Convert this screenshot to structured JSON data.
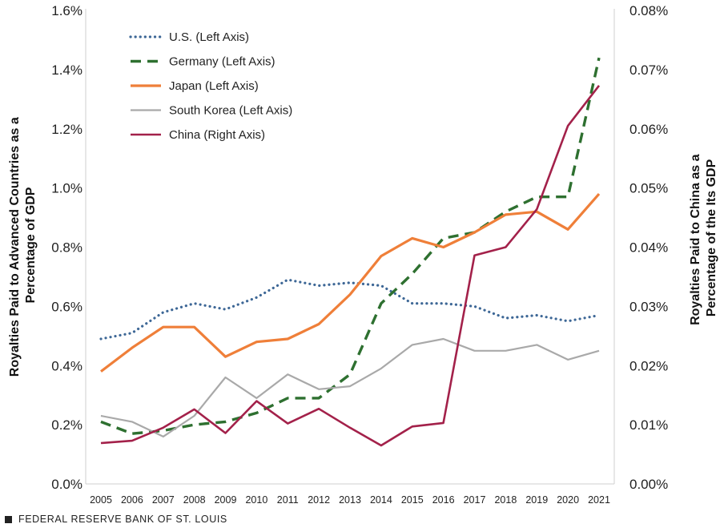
{
  "chart_data": {
    "type": "line",
    "title": "",
    "x": [
      2005,
      2006,
      2007,
      2008,
      2009,
      2010,
      2011,
      2012,
      2013,
      2014,
      2015,
      2016,
      2017,
      2018,
      2019,
      2020,
      2021
    ],
    "x_tick_labels": [
      "2005",
      "2006",
      "2007",
      "2008",
      "2009",
      "2010",
      "2011",
      "2012",
      "2013",
      "2014",
      "2015",
      "2016",
      "2017",
      "2018",
      "2019",
      "2020",
      "2021"
    ],
    "ylabel_left": "Royalties Paid to Advanced Countries as a Percentage of GDP",
    "ylabel_right": "Royalties Paid to China as a Percentage of the Its GDP",
    "ylim_left": [
      0,
      1.6
    ],
    "ylim_right": [
      0,
      0.08
    ],
    "yticks_left": [
      "0.0%",
      "0.2%",
      "0.4%",
      "0.6%",
      "0.8%",
      "1.0%",
      "1.2%",
      "1.4%",
      "1.6%"
    ],
    "yticks_right": [
      "0.00%",
      "0.01%",
      "0.02%",
      "0.03%",
      "0.04%",
      "0.05%",
      "0.06%",
      "0.07%",
      "0.08%"
    ],
    "grid": false,
    "legend_position": "top-left",
    "series": [
      {
        "name": "U.S. (Left Axis)",
        "axis": "left",
        "style": "dotted",
        "color": "#3d6796",
        "values": [
          0.49,
          0.51,
          0.58,
          0.61,
          0.59,
          0.63,
          0.69,
          0.67,
          0.68,
          0.67,
          0.61,
          0.61,
          0.6,
          0.56,
          0.57,
          0.55,
          0.57
        ]
      },
      {
        "name": "Germany (Left Axis)",
        "axis": "left",
        "style": "dashed",
        "color": "#2e7030",
        "values": [
          0.21,
          0.17,
          0.18,
          0.2,
          0.21,
          0.24,
          0.29,
          0.29,
          0.37,
          0.61,
          0.71,
          0.83,
          0.85,
          0.92,
          0.97,
          0.97,
          1.44
        ]
      },
      {
        "name": "Japan (Left Axis)",
        "axis": "left",
        "style": "solid",
        "color": "#ef7f39",
        "values": [
          0.38,
          0.46,
          0.53,
          0.53,
          0.43,
          0.48,
          0.49,
          0.54,
          0.64,
          0.77,
          0.83,
          0.8,
          0.85,
          0.91,
          0.92,
          0.86,
          0.98
        ]
      },
      {
        "name": "South Korea (Left Axis)",
        "axis": "left",
        "style": "solid",
        "color": "#a9a9a9",
        "values": [
          0.23,
          0.21,
          0.16,
          0.23,
          0.36,
          0.29,
          0.37,
          0.32,
          0.33,
          0.39,
          0.47,
          0.49,
          0.45,
          0.45,
          0.47,
          0.42,
          0.45
        ]
      },
      {
        "name": "China (Right Axis)",
        "axis": "right",
        "style": "solid",
        "color": "#a3214a",
        "values": [
          0.0069,
          0.0073,
          0.0095,
          0.0126,
          0.0086,
          0.014,
          0.0102,
          0.0127,
          0.0095,
          0.0065,
          0.0097,
          0.0103,
          0.0386,
          0.04,
          0.0464,
          0.0605,
          0.0673
        ]
      }
    ]
  },
  "source": "FEDERAL RESERVE BANK OF ST. LOUIS"
}
